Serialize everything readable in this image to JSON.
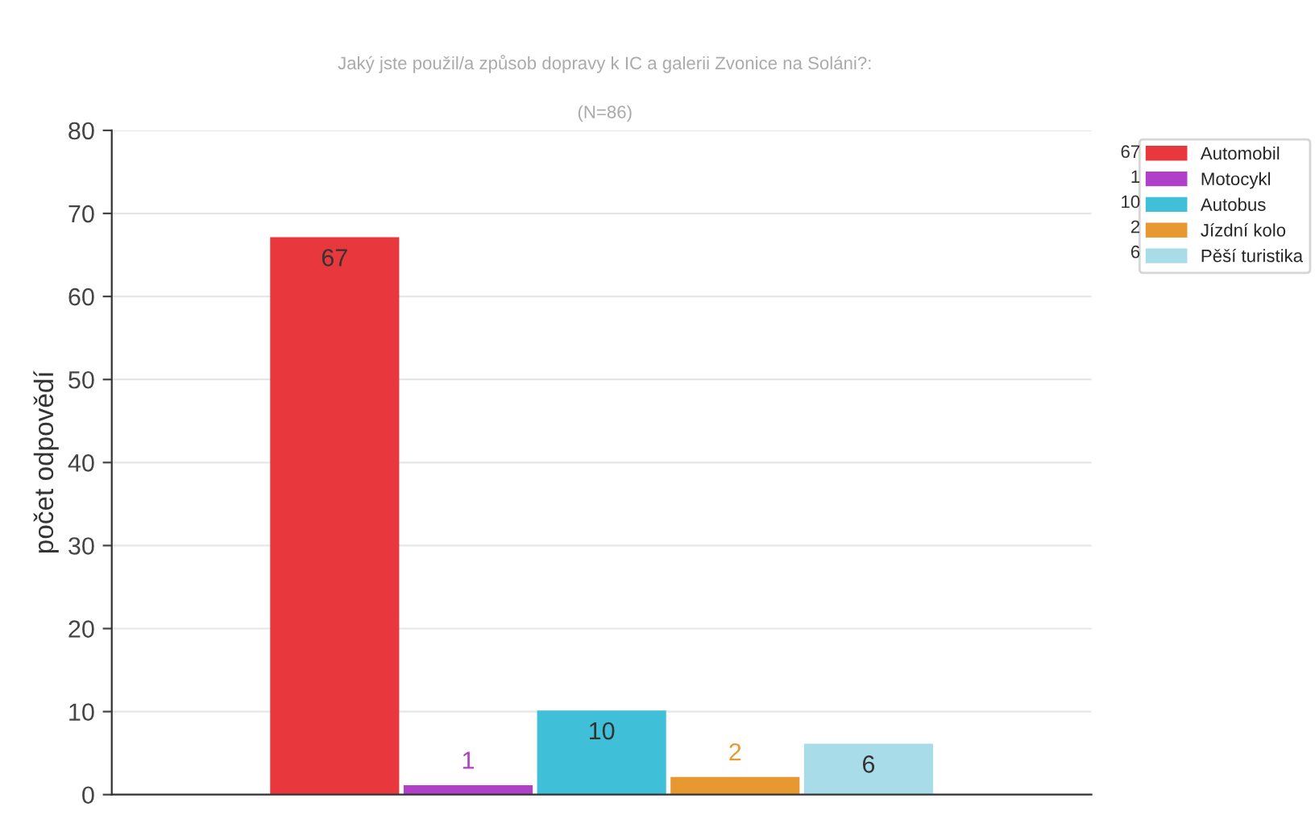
{
  "chart_data": {
    "type": "bar",
    "title": "Jaký jste použil/a způsob dopravy k IC a galerii Zvonice na Soláni?:",
    "subtitle": "(N=86)",
    "ylabel": "počet odpovědí",
    "categories": [
      null,
      null,
      null,
      null,
      null
    ],
    "series": [
      {
        "name": "Automobil",
        "color": "#e8383d",
        "values": [
          67,
          null,
          null,
          null,
          null
        ]
      },
      {
        "name": "Motocykl",
        "color": "#b040c8",
        "values": [
          null,
          1,
          null,
          null,
          null
        ]
      },
      {
        "name": "Autobus",
        "color": "#40c0d8",
        "values": [
          null,
          null,
          10,
          null,
          null
        ]
      },
      {
        "name": "Jízdní kolo",
        "color": "#e89830",
        "values": [
          null,
          null,
          null,
          2,
          null
        ]
      },
      {
        "name": "Pěší turistika",
        "color": "#a8dce8",
        "values": [
          null,
          null,
          null,
          null,
          6
        ]
      }
    ],
    "ylim": [
      0,
      80
    ],
    "yticks": [
      0,
      10,
      20,
      30,
      40,
      50,
      60,
      70,
      80
    ],
    "stacked": true,
    "annotations": [
      "67",
      "1",
      "10",
      "2",
      "6"
    ],
    "grid": "y",
    "legend": "top right",
    "data_labels": true,
    "tick_labels": "y"
  }
}
